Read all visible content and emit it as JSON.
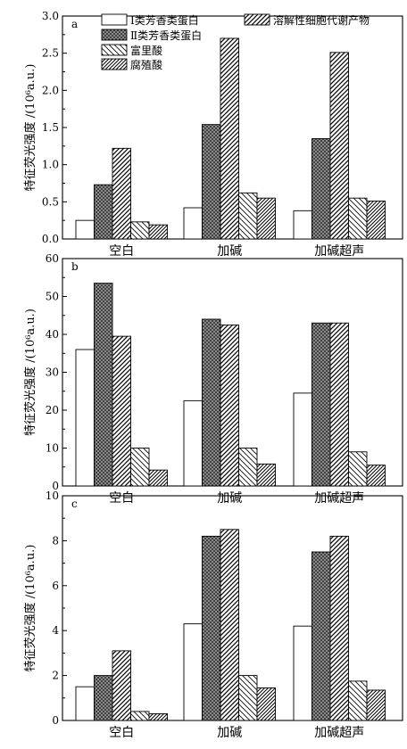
{
  "series_names": [
    "Ⅰ类芳香类蛋白",
    "Ⅱ类芳香类蛋白",
    "溶解性细胞代谢产物",
    "富里酸",
    "腐殖酸"
  ],
  "series_colors": [
    "#ffffff",
    "#2a2a2a",
    "#ffffff",
    "#ffffff",
    "#ffffff"
  ],
  "categories": [
    "空白",
    "加碱",
    "加碱超声"
  ],
  "ylabel": "特征荧光强度 /(10⁶a.u.)",
  "legend_placement": "top-left of panel a",
  "chart_data": [
    {
      "type": "bar",
      "panel": "a",
      "ylim": [
        0,
        3.0
      ],
      "yticks": [
        "0.0",
        "0.5",
        "1.0",
        "1.5",
        "2.0",
        "2.5",
        "3.0"
      ],
      "series": [
        {
          "values": [
            0.25,
            0.42,
            0.38
          ]
        },
        {
          "values": [
            0.73,
            1.54,
            1.35
          ]
        },
        {
          "values": [
            1.22,
            2.7,
            2.51
          ]
        },
        {
          "values": [
            0.23,
            0.62,
            0.55
          ]
        },
        {
          "values": [
            0.19,
            0.55,
            0.51
          ]
        }
      ]
    },
    {
      "type": "bar",
      "panel": "b",
      "ylim": [
        0,
        60
      ],
      "yticks": [
        "0",
        "10",
        "20",
        "30",
        "40",
        "50",
        "60"
      ],
      "series": [
        {
          "values": [
            36.0,
            22.5,
            24.5
          ]
        },
        {
          "values": [
            53.5,
            44.0,
            43.0
          ]
        },
        {
          "values": [
            39.5,
            42.5,
            43.0
          ]
        },
        {
          "values": [
            10.0,
            10.0,
            9.0
          ]
        },
        {
          "values": [
            4.2,
            5.8,
            5.5
          ]
        }
      ]
    },
    {
      "type": "bar",
      "panel": "c",
      "ylim": [
        0,
        10
      ],
      "yticks": [
        "0",
        "2",
        "4",
        "6",
        "8",
        "10"
      ],
      "series": [
        {
          "values": [
            1.5,
            4.3,
            4.2
          ]
        },
        {
          "values": [
            2.0,
            8.2,
            7.5
          ]
        },
        {
          "values": [
            3.1,
            8.5,
            8.2
          ]
        },
        {
          "values": [
            0.4,
            2.0,
            1.75
          ]
        },
        {
          "values": [
            0.3,
            1.45,
            1.35
          ]
        }
      ]
    }
  ]
}
